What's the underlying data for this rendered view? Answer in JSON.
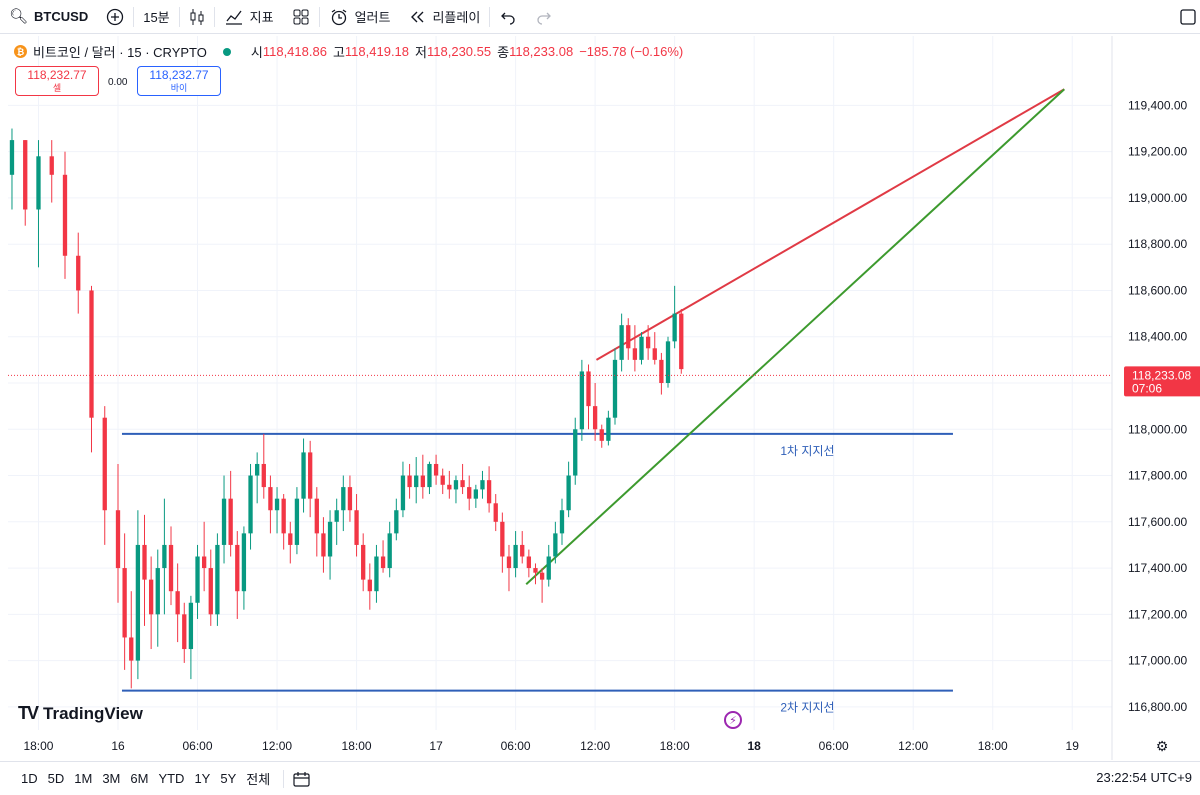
{
  "toolbar": {
    "symbol": "BTCUSD",
    "interval": "15분",
    "indicators_label": "지표",
    "alert_label": "얼러트",
    "replay_label": "리플레이"
  },
  "legend": {
    "title": "비트코인 / 달러 · 15 · CRYPTO",
    "open_key": "시",
    "open": "118,418.86",
    "high_key": "고",
    "high": "118,419.18",
    "low_key": "저",
    "low": "118,230.55",
    "close_key": "종",
    "close": "118,233.08",
    "change": "−185.78 (−0.16%)"
  },
  "trade": {
    "sell_price": "118,232.77",
    "sell_label": "셀",
    "spread": "0.00",
    "buy_price": "118,232.77",
    "buy_label": "바이"
  },
  "last_price": {
    "price": "118,233.08",
    "countdown": "07:06",
    "value": 118233.08
  },
  "colors": {
    "up": "#089981",
    "down": "#f23645",
    "support": "#2f5fb8",
    "resistance_line": "#e03a45",
    "trend_line": "#3d9a2e"
  },
  "bottombar": {
    "ranges": [
      "1D",
      "5D",
      "1M",
      "3M",
      "6M",
      "YTD",
      "1Y",
      "5Y",
      "전체"
    ],
    "clock": "23:22:54 UTC+9"
  },
  "branding": {
    "logo_text": "TradingView"
  },
  "chart_data": {
    "type": "candlestick",
    "title": "비트코인 / 달러 · 15 · CRYPTO",
    "y_ticks": [
      119400,
      119200,
      119000,
      118800,
      118600,
      118400,
      118200,
      118000,
      117800,
      117600,
      117400,
      117200,
      117000,
      116800
    ],
    "y_tick_labels": [
      "119,400.00",
      "119,200.00",
      "119,000.00",
      "118,800.00",
      "118,600.00",
      "118,400.00",
      "118,200.00",
      "118,000.00",
      "117,800.00",
      "117,600.00",
      "117,400.00",
      "117,200.00",
      "117,000.00",
      "116,800.00"
    ],
    "ylim": [
      116700,
      119700
    ],
    "x_ticks": [
      "18:00",
      "16",
      "06:00",
      "12:00",
      "18:00",
      "17",
      "06:00",
      "12:00",
      "18:00",
      "18",
      "06:00",
      "12:00",
      "18:00",
      "19"
    ],
    "x_tick_bold": [
      false,
      false,
      false,
      false,
      false,
      false,
      false,
      false,
      false,
      true,
      false,
      false,
      false,
      false
    ],
    "x_tick_hours": [
      -6,
      0,
      6,
      12,
      18,
      24,
      30,
      36,
      42,
      48,
      54,
      60,
      66,
      72
    ],
    "xlim_hours": [
      -8.3,
      75
    ],
    "ohlc_hours": [
      [
        -8.0,
        119100,
        119300,
        118950,
        119250
      ],
      [
        -7.0,
        119250,
        119250,
        118880,
        118950
      ],
      [
        -6.0,
        118950,
        119250,
        118700,
        119180
      ],
      [
        -5.0,
        119180,
        119250,
        118980,
        119100
      ],
      [
        -4.0,
        119100,
        119200,
        118650,
        118750
      ],
      [
        -3.0,
        118750,
        118850,
        118500,
        118600
      ],
      [
        -2.0,
        118600,
        118620,
        117900,
        118050
      ],
      [
        -1.0,
        118050,
        118100,
        117500,
        117650
      ],
      [
        0.0,
        117650,
        117850,
        117250,
        117400
      ],
      [
        0.5,
        117400,
        117550,
        116960,
        117100
      ],
      [
        1.0,
        117100,
        117300,
        116880,
        117000
      ],
      [
        1.5,
        117000,
        117650,
        116920,
        117500
      ],
      [
        2.0,
        117500,
        117630,
        117150,
        117350
      ],
      [
        2.5,
        117350,
        117450,
        117050,
        117200
      ],
      [
        3.0,
        117200,
        117480,
        117060,
        117400
      ],
      [
        3.5,
        117400,
        117700,
        117200,
        117500
      ],
      [
        4.0,
        117500,
        117580,
        117240,
        117300
      ],
      [
        4.5,
        117300,
        117420,
        117080,
        117200
      ],
      [
        5.0,
        117200,
        117250,
        116990,
        117050
      ],
      [
        5.5,
        117050,
        117280,
        116920,
        117250
      ],
      [
        6.0,
        117250,
        117500,
        117180,
        117450
      ],
      [
        6.5,
        117450,
        117600,
        117300,
        117400
      ],
      [
        7.0,
        117400,
        117480,
        117150,
        117200
      ],
      [
        7.5,
        117200,
        117550,
        117150,
        117500
      ],
      [
        8.0,
        117500,
        117800,
        117420,
        117700
      ],
      [
        8.5,
        117700,
        117820,
        117450,
        117500
      ],
      [
        9.0,
        117500,
        117560,
        117180,
        117300
      ],
      [
        9.5,
        117300,
        117580,
        117220,
        117550
      ],
      [
        10.0,
        117550,
        117850,
        117480,
        117800
      ],
      [
        10.5,
        117800,
        117900,
        117680,
        117850
      ],
      [
        11.0,
        117850,
        117980,
        117700,
        117750
      ],
      [
        11.5,
        117750,
        117800,
        117550,
        117650
      ],
      [
        12.0,
        117650,
        117750,
        117550,
        117700
      ],
      [
        12.5,
        117700,
        117720,
        117480,
        117550
      ],
      [
        13.0,
        117550,
        117600,
        117420,
        117500
      ],
      [
        13.5,
        117500,
        117750,
        117460,
        117700
      ],
      [
        14.0,
        117700,
        117960,
        117640,
        117900
      ],
      [
        14.5,
        117900,
        117950,
        117620,
        117700
      ],
      [
        15.0,
        117700,
        117750,
        117450,
        117550
      ],
      [
        15.5,
        117550,
        117620,
        117380,
        117450
      ],
      [
        16.0,
        117450,
        117650,
        117350,
        117600
      ],
      [
        16.5,
        117600,
        117700,
        117500,
        117650
      ],
      [
        17.0,
        117650,
        117800,
        117560,
        117750
      ],
      [
        17.5,
        117750,
        117800,
        117600,
        117650
      ],
      [
        18.0,
        117650,
        117720,
        117450,
        117500
      ],
      [
        18.5,
        117500,
        117550,
        117300,
        117350
      ],
      [
        19.0,
        117350,
        117420,
        117220,
        117300
      ],
      [
        19.5,
        117300,
        117500,
        117250,
        117450
      ],
      [
        20.0,
        117450,
        117520,
        117380,
        117400
      ],
      [
        20.5,
        117400,
        117600,
        117360,
        117550
      ],
      [
        21.0,
        117550,
        117700,
        117520,
        117650
      ],
      [
        21.5,
        117650,
        117860,
        117620,
        117800
      ],
      [
        22.0,
        117800,
        117850,
        117700,
        117750
      ],
      [
        22.5,
        117750,
        117880,
        117680,
        117800
      ],
      [
        23.0,
        117800,
        117890,
        117700,
        117750
      ],
      [
        23.5,
        117750,
        117860,
        117720,
        117850
      ],
      [
        24.0,
        117850,
        117890,
        117760,
        117800
      ],
      [
        24.5,
        117800,
        117830,
        117720,
        117760
      ],
      [
        25.0,
        117760,
        117820,
        117700,
        117740
      ],
      [
        25.5,
        117740,
        117800,
        117680,
        117780
      ],
      [
        26.0,
        117780,
        117850,
        117720,
        117750
      ],
      [
        26.5,
        117750,
        117800,
        117650,
        117700
      ],
      [
        27.0,
        117700,
        117760,
        117660,
        117740
      ],
      [
        27.5,
        117740,
        117820,
        117700,
        117780
      ],
      [
        28.0,
        117780,
        117840,
        117640,
        117680
      ],
      [
        28.5,
        117680,
        117720,
        117560,
        117600
      ],
      [
        29.0,
        117600,
        117640,
        117380,
        117450
      ],
      [
        29.5,
        117450,
        117500,
        117300,
        117400
      ],
      [
        30.0,
        117400,
        117560,
        117360,
        117500
      ],
      [
        30.5,
        117500,
        117560,
        117420,
        117450
      ],
      [
        31.0,
        117450,
        117480,
        117360,
        117400
      ],
      [
        31.5,
        117400,
        117420,
        117330,
        117380
      ],
      [
        32.0,
        117380,
        117400,
        117250,
        117350
      ],
      [
        32.5,
        117350,
        117500,
        117320,
        117450
      ],
      [
        33.0,
        117450,
        117600,
        117420,
        117550
      ],
      [
        33.5,
        117550,
        117700,
        117500,
        117650
      ],
      [
        34.0,
        117650,
        117860,
        117620,
        117800
      ],
      [
        34.5,
        117800,
        118050,
        117760,
        118000
      ],
      [
        35.0,
        118000,
        118300,
        117950,
        118250
      ],
      [
        35.5,
        118250,
        118280,
        118000,
        118100
      ],
      [
        36.0,
        118100,
        118200,
        117950,
        118000
      ],
      [
        36.5,
        118000,
        118020,
        117920,
        117950
      ],
      [
        37.0,
        117950,
        118080,
        117930,
        118050
      ],
      [
        37.5,
        118050,
        118350,
        118020,
        118300
      ],
      [
        38.0,
        118300,
        118500,
        118250,
        118450
      ],
      [
        38.5,
        118450,
        118480,
        118300,
        118350
      ],
      [
        39.0,
        118350,
        118450,
        118250,
        118300
      ],
      [
        39.5,
        118300,
        118420,
        118280,
        118400
      ],
      [
        40.0,
        118400,
        118450,
        118300,
        118350
      ],
      [
        40.5,
        118350,
        118420,
        118280,
        118300
      ],
      [
        41.0,
        118300,
        118330,
        118150,
        118200
      ],
      [
        41.5,
        118200,
        118400,
        118180,
        118380
      ],
      [
        42.0,
        118380,
        118620,
        118350,
        118500
      ],
      [
        42.5,
        118500,
        118520,
        118240,
        118260
      ]
    ],
    "annotations": [
      {
        "type": "hline",
        "price": 117980,
        "from_hour": 0.3,
        "to_hour": 63.0,
        "label": "1차 지지선"
      },
      {
        "type": "hline",
        "price": 116870,
        "from_hour": 0.3,
        "to_hour": 63.0,
        "label": "2차 지지선"
      },
      {
        "type": "trendline",
        "role": "resistance",
        "from": [
          36.1,
          118300
        ],
        "to": [
          71.4,
          119470
        ]
      },
      {
        "type": "trendline",
        "role": "support",
        "from": [
          30.8,
          117330
        ],
        "to": [
          71.4,
          119470
        ]
      }
    ]
  }
}
